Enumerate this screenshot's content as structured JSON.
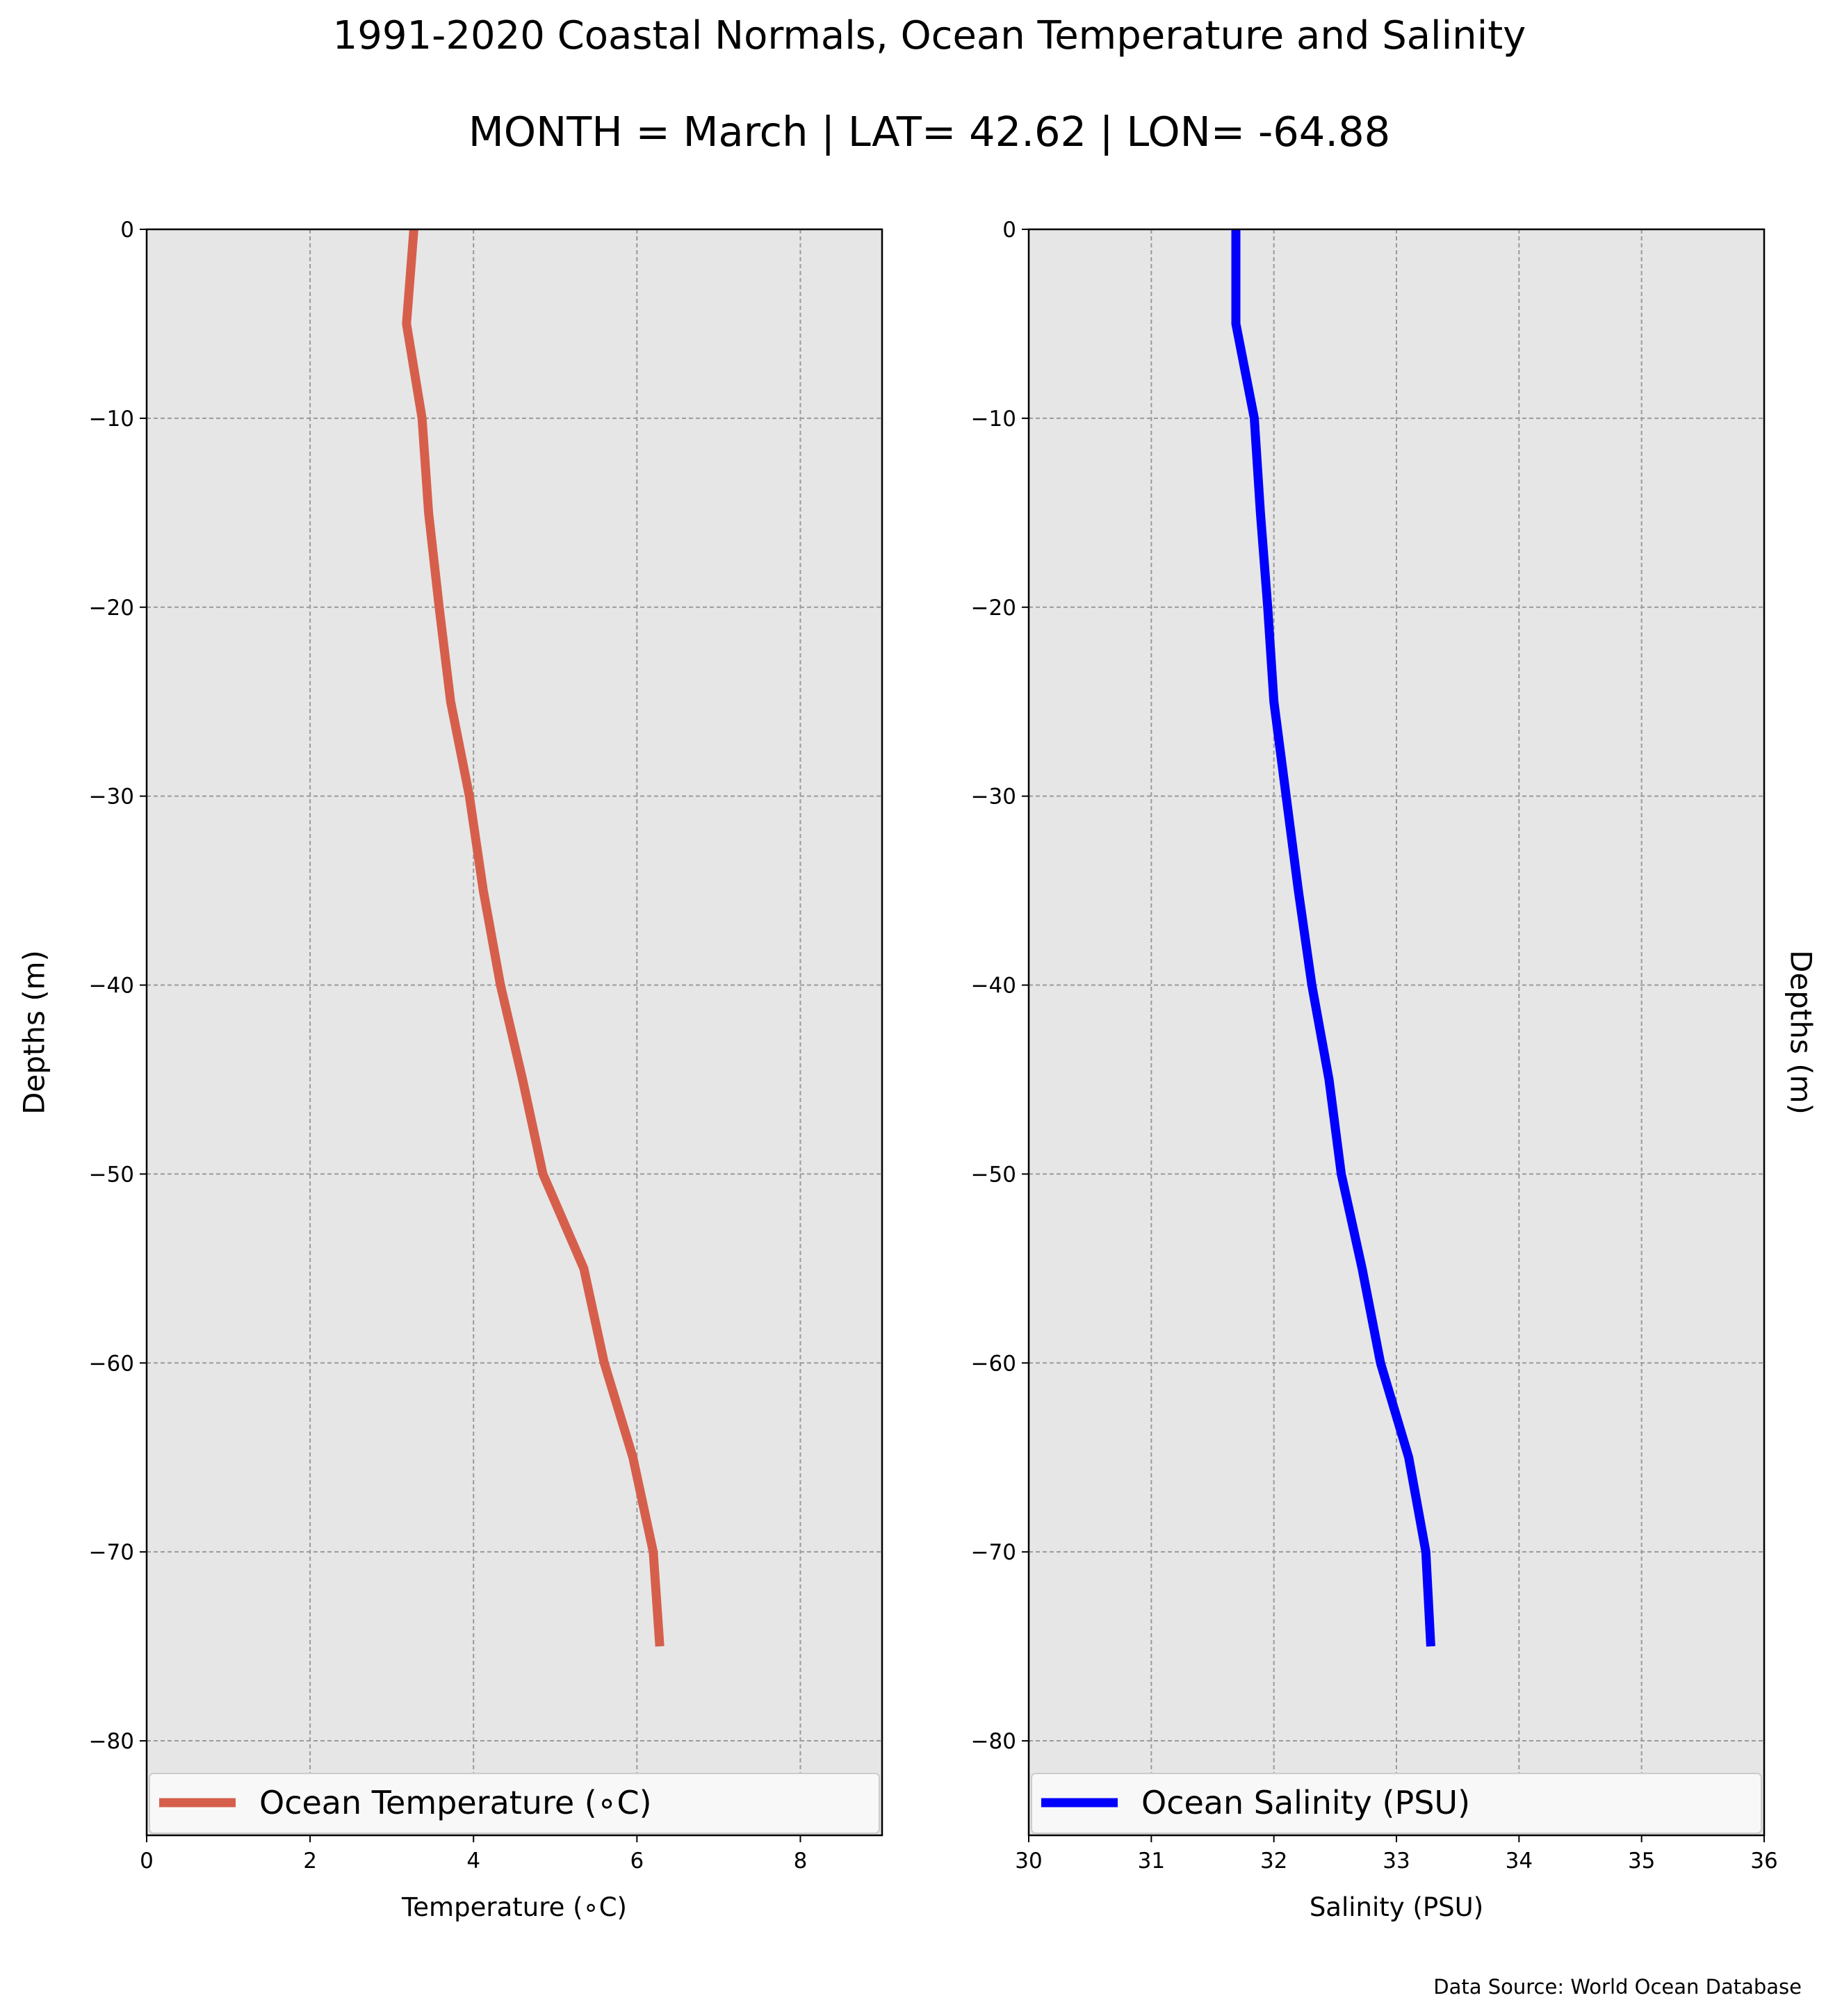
{
  "title": "1991-2020 Coastal Normals, Ocean Temperature and Salinity",
  "subtitle": "MONTH = March | LAT= 42.62 | LON= -64.88",
  "source": "Data Source: World Ocean Database",
  "chart_data": [
    {
      "type": "line",
      "xlabel": "Temperature (∘C)",
      "ylabel": "Depths (m)",
      "xlim": [
        0,
        9
      ],
      "ylim": [
        -85,
        0
      ],
      "xticks": [
        0,
        2,
        4,
        6,
        8
      ],
      "yticks": [
        0,
        -10,
        -20,
        -30,
        -40,
        -50,
        -60,
        -70,
        -80
      ],
      "grid": true,
      "legend_position": "bottom",
      "color": "#d65f4c",
      "series": [
        {
          "name": "Ocean Temperature (∘C)",
          "x": [
            3.27,
            3.18,
            3.37,
            3.45,
            3.58,
            3.72,
            3.95,
            4.12,
            4.33,
            4.6,
            4.85,
            5.35,
            5.6,
            5.95,
            6.2,
            6.28
          ],
          "y": [
            0,
            -5,
            -10,
            -15,
            -20,
            -25,
            -30,
            -35,
            -40,
            -45,
            -50,
            -55,
            -60,
            -65,
            -70,
            -75
          ]
        }
      ]
    },
    {
      "type": "line",
      "xlabel": "Salinity (PSU)",
      "ylabel": "Depths (m)",
      "xlim": [
        30,
        36
      ],
      "ylim": [
        -85,
        0
      ],
      "xticks": [
        30,
        31,
        32,
        33,
        34,
        35,
        36
      ],
      "yticks": [
        0,
        -10,
        -20,
        -30,
        -40,
        -50,
        -60,
        -70,
        -80
      ],
      "grid": true,
      "legend_position": "bottom",
      "color": "#0000ff",
      "series": [
        {
          "name": "Ocean Salinity (PSU)",
          "x": [
            31.69,
            31.69,
            31.84,
            31.89,
            31.95,
            32.0,
            32.1,
            32.2,
            32.31,
            32.45,
            32.55,
            32.72,
            32.87,
            33.1,
            33.24,
            33.28
          ],
          "y": [
            0,
            -5,
            -10,
            -15,
            -20,
            -25,
            -30,
            -35,
            -40,
            -45,
            -50,
            -55,
            -60,
            -65,
            -70,
            -75
          ]
        }
      ]
    }
  ]
}
